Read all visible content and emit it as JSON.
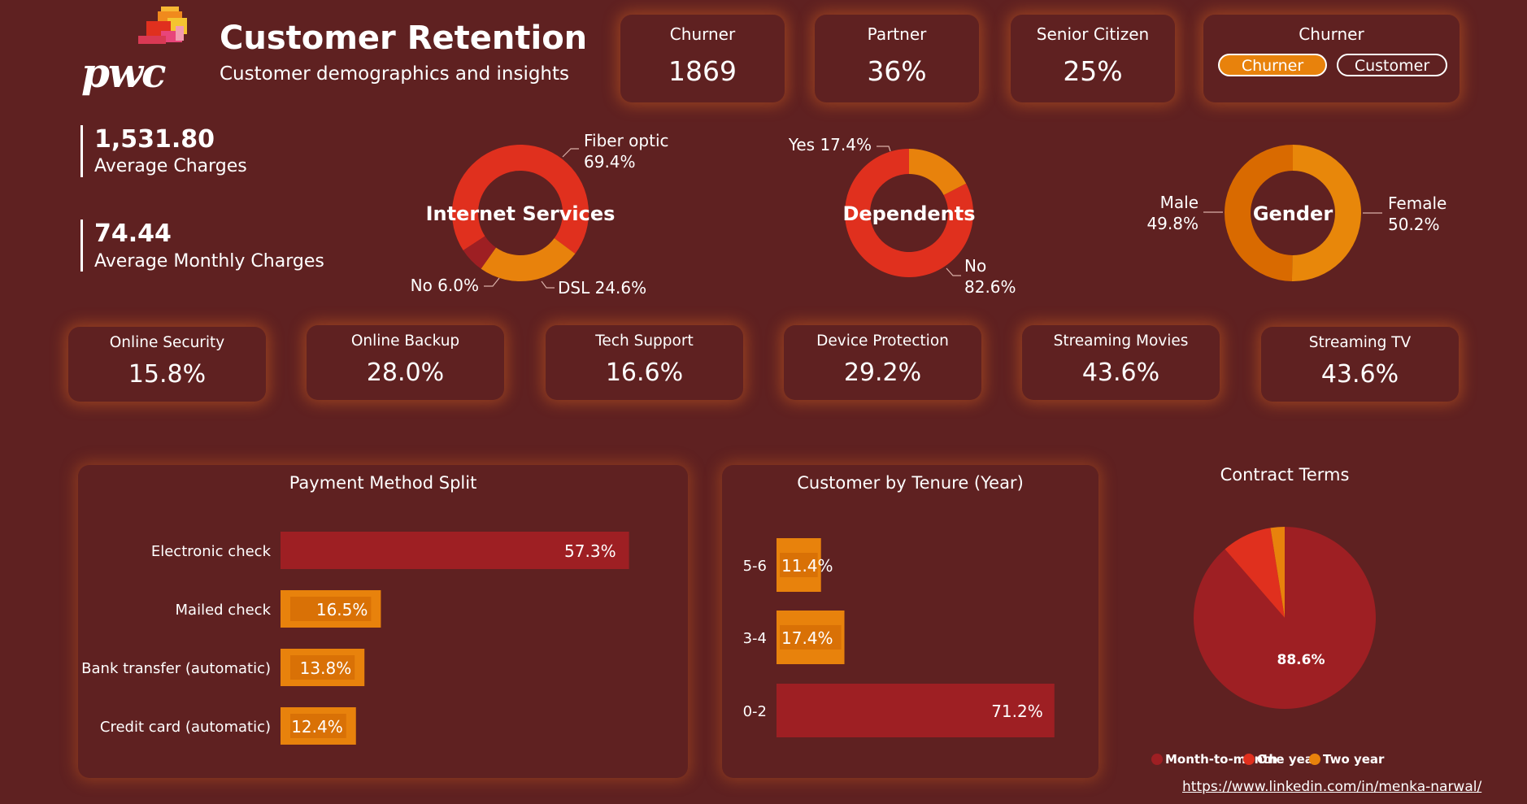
{
  "header": {
    "logo_text": "pwc",
    "title": "Customer Retention",
    "subtitle": "Customer demographics and insights"
  },
  "kpis": [
    {
      "label": "Churner",
      "value": "1869"
    },
    {
      "label": "Partner",
      "value": "36%"
    },
    {
      "label": "Senior Citizen",
      "value": "25%"
    }
  ],
  "filter": {
    "label": "Churner",
    "options": [
      "Churner",
      "Customer"
    ],
    "selected": "Churner"
  },
  "charges": {
    "average_charges_value": "1,531.80",
    "average_charges_label": "Average Charges",
    "average_monthly_value": "74.44",
    "average_monthly_label": "Average Monthly Charges"
  },
  "services": [
    {
      "label": "Online Security",
      "value": "15.8%"
    },
    {
      "label": "Online Backup",
      "value": "28.0%"
    },
    {
      "label": "Tech Support",
      "value": "16.6%"
    },
    {
      "label": "Device Protection",
      "value": "29.2%"
    },
    {
      "label": "Streaming Movies",
      "value": "43.6%"
    },
    {
      "label": "Streaming TV",
      "value": "43.6%"
    }
  ],
  "colors": {
    "background": "#5f2121",
    "accent_orange": "#e8820c",
    "red": "#e0301e",
    "dark_red": "#9e1f23",
    "deep_orange": "#d96a00"
  },
  "footer": {
    "link": "https://www.linkedin.com/in/menka-narwal/"
  },
  "chart_data": [
    {
      "type": "pie",
      "title": "Internet Services",
      "labels": [
        "Fiber optic",
        "DSL",
        "No"
      ],
      "values": [
        69.4,
        24.6,
        6.0
      ],
      "value_labels": [
        "69.4%",
        "24.6%",
        "6.0%"
      ],
      "colors": [
        "#e0301e",
        "#e8820c",
        "#9e1f23"
      ]
    },
    {
      "type": "pie",
      "title": "Dependents",
      "labels": [
        "Yes",
        "No"
      ],
      "values": [
        17.4,
        82.6
      ],
      "value_labels": [
        "17.4%",
        "82.6%"
      ],
      "colors": [
        "#e8820c",
        "#e0301e"
      ]
    },
    {
      "type": "pie",
      "title": "Gender",
      "labels": [
        "Female",
        "Male"
      ],
      "values": [
        50.2,
        49.8
      ],
      "value_labels": [
        "50.2%",
        "49.8%"
      ],
      "colors": [
        "#e8870a",
        "#d96a00"
      ]
    },
    {
      "type": "bar",
      "title": "Payment Method Split",
      "categories": [
        "Electronic check",
        "Mailed check",
        "Bank transfer (automatic)",
        "Credit card (automatic)"
      ],
      "values": [
        57.3,
        16.5,
        13.8,
        12.4
      ],
      "value_labels": [
        "57.3%",
        "16.5%",
        "13.8%",
        "12.4%"
      ],
      "colors": [
        "#9e1f23",
        "#e8820c",
        "#e8820c",
        "#e8820c"
      ]
    },
    {
      "type": "bar",
      "title": "Customer by Tenure (Year)",
      "categories": [
        "5-6",
        "3-4",
        "0-2"
      ],
      "values": [
        11.4,
        17.4,
        71.2
      ],
      "value_labels": [
        "11.4%",
        "17.4%",
        "71.2%"
      ],
      "colors": [
        "#e8820c",
        "#e8820c",
        "#9e1f23"
      ]
    },
    {
      "type": "pie",
      "title": "Contract Terms",
      "labels": [
        "Month-to-month",
        "One year",
        "Two year"
      ],
      "values": [
        88.6,
        8.9,
        2.5
      ],
      "value_labels": [
        "88.6%",
        "",
        ""
      ],
      "colors": [
        "#9e1f23",
        "#e0301e",
        "#e8820c"
      ]
    }
  ]
}
